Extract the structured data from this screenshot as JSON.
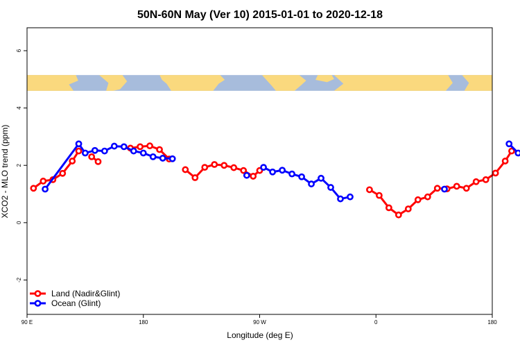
{
  "chart_data": {
    "type": "line",
    "title": "50N-60N May (Ver 10)   2015-01-01 to 2020-12-18",
    "xlabel": "Longitude (deg E)",
    "ylabel": "XCO2 - MLO trend (ppm)",
    "xlim": [
      90,
      450
    ],
    "ylim": [
      -3.2,
      6.8
    ],
    "x_ticks": [
      {
        "value": 90,
        "label": "90 E"
      },
      {
        "value": 180,
        "label": "180"
      },
      {
        "value": 270,
        "label": "90 W"
      },
      {
        "value": 360,
        "label": "0"
      },
      {
        "value": 450,
        "label": "180"
      }
    ],
    "y_ticks": [
      {
        "value": -2,
        "label": "-2"
      },
      {
        "value": 0,
        "label": "0"
      },
      {
        "value": 2,
        "label": "2"
      },
      {
        "value": 4,
        "label": "4"
      },
      {
        "value": 6,
        "label": "6"
      }
    ],
    "map_band": {
      "ymin": 4.6,
      "ymax": 5.15,
      "ocean_color": "#A7BCDC",
      "land_color": "#FAD97E"
    },
    "legend_position": "bottom-left",
    "series": [
      {
        "name": "Land (Nadir&Glint)",
        "color": "#FF0000",
        "segments": [
          [
            [
              95,
              1.2
            ],
            [
              102.5,
              1.45
            ],
            [
              110,
              1.5
            ],
            [
              117.5,
              1.72
            ],
            [
              125,
              2.15
            ],
            [
              130,
              2.5
            ]
          ],
          [
            [
              140,
              2.3
            ],
            [
              145,
              2.13
            ]
          ],
          [
            [
              170,
              2.6
            ],
            [
              177.5,
              2.65
            ],
            [
              185,
              2.68
            ],
            [
              192.5,
              2.55
            ],
            [
              200,
              2.22
            ]
          ],
          [
            [
              212.5,
              1.85
            ],
            [
              220,
              1.57
            ],
            [
              227.5,
              1.93
            ],
            [
              235,
              2.03
            ],
            [
              242.5,
              2.0
            ],
            [
              250,
              1.92
            ],
            [
              257.5,
              1.82
            ],
            [
              265,
              1.62
            ],
            [
              270,
              1.82
            ]
          ],
          [
            [
              355,
              1.15
            ],
            [
              362.5,
              0.95
            ],
            [
              370,
              0.52
            ],
            [
              377.5,
              0.27
            ],
            [
              385,
              0.48
            ],
            [
              392.5,
              0.8
            ],
            [
              400,
              0.9
            ],
            [
              407.5,
              1.2
            ],
            [
              415,
              1.18
            ],
            [
              422.5,
              1.27
            ],
            [
              430,
              1.2
            ],
            [
              437.5,
              1.43
            ],
            [
              445,
              1.5
            ],
            [
              452.5,
              1.73
            ],
            [
              460,
              2.15
            ],
            [
              465,
              2.5
            ]
          ],
          [
            [
              475,
              2.3
            ],
            [
              480,
              2.13
            ]
          ]
        ]
      },
      {
        "name": "Ocean (Glint)",
        "color": "#0000FF",
        "segments": [
          [
            [
              104,
              1.17
            ],
            [
              130,
              2.75
            ],
            [
              135,
              2.43
            ],
            [
              142.5,
              2.52
            ],
            [
              150,
              2.5
            ],
            [
              157.5,
              2.67
            ],
            [
              165,
              2.65
            ],
            [
              172.5,
              2.5
            ],
            [
              180,
              2.43
            ],
            [
              187.5,
              2.3
            ],
            [
              195,
              2.25
            ],
            [
              202.5,
              2.23
            ]
          ],
          [
            [
              260,
              1.65
            ]
          ],
          [
            [
              273,
              1.93
            ],
            [
              280,
              1.77
            ],
            [
              287.5,
              1.83
            ],
            [
              295,
              1.7
            ],
            [
              302.5,
              1.6
            ],
            [
              310,
              1.35
            ],
            [
              317.5,
              1.55
            ],
            [
              325,
              1.23
            ],
            [
              332.5,
              0.83
            ],
            [
              340,
              0.9
            ]
          ],
          [
            [
              413,
              1.17
            ]
          ],
          [
            [
              463,
              2.75
            ],
            [
              470,
              2.43
            ],
            [
              477.5,
              2.5
            ],
            [
              485,
              2.48
            ],
            [
              492.5,
              2.68
            ]
          ]
        ]
      }
    ]
  }
}
